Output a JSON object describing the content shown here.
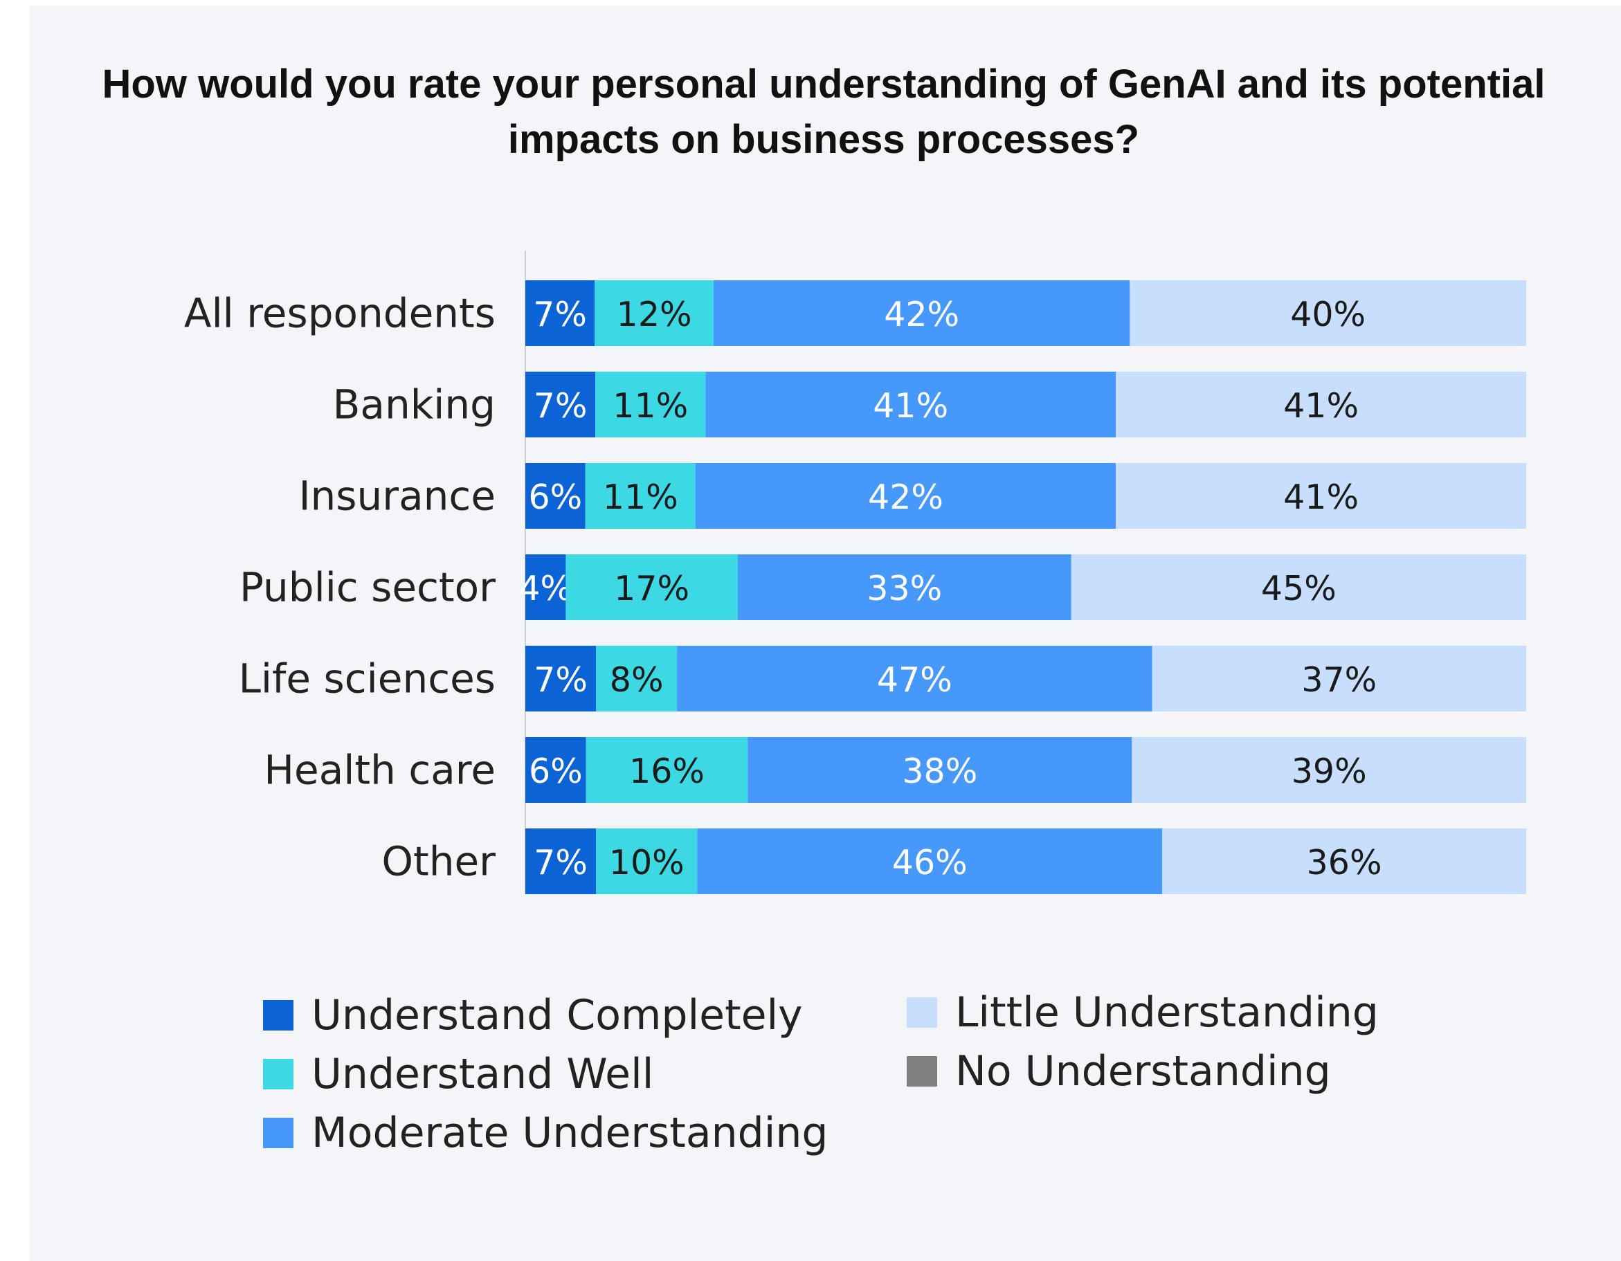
{
  "chart_data": {
    "type": "bar",
    "orientation": "horizontal",
    "stacked": true,
    "title": "How would you rate your personal understanding of GenAI and its potential impacts on business processes?",
    "categories": [
      "All respondents",
      "Banking",
      "Insurance",
      "Public sector",
      "Life sciences",
      "Health care",
      "Other"
    ],
    "series": [
      {
        "name": "Understand Completely",
        "color": "#0b63d6",
        "label_color": "#ffffff",
        "values": [
          7,
          7,
          6,
          4,
          7,
          6,
          7
        ],
        "labels": [
          "7%",
          "7%",
          "6%",
          "4%",
          "7%",
          "6%",
          "7%"
        ]
      },
      {
        "name": "Understand Well",
        "color": "#3cd8e4",
        "label_color": "#1a1a1a",
        "values": [
          12,
          11,
          11,
          17,
          8,
          16,
          10
        ],
        "labels": [
          "12%",
          "11%",
          "11%",
          "17%",
          "8%",
          "16%",
          "10%"
        ]
      },
      {
        "name": "Moderate Understanding",
        "color": "#4698fa",
        "label_color": "#ffffff",
        "values": [
          42,
          41,
          42,
          33,
          47,
          38,
          46
        ],
        "labels": [
          "42%",
          "41%",
          "42%",
          "33%",
          "47%",
          "38%",
          "46%"
        ]
      },
      {
        "name": "Little Understanding",
        "color": "#c7dffc",
        "label_color": "#1a1a1a",
        "values": [
          40,
          41,
          41,
          45,
          37,
          39,
          36
        ],
        "labels": [
          "40%",
          "41%",
          "41%",
          "45%",
          "37%",
          "39%",
          "36%"
        ]
      },
      {
        "name": "No Understanding",
        "color": "#7f7f7f",
        "label_color": "#ffffff",
        "values": [
          0,
          0,
          0,
          0,
          0,
          0,
          0
        ],
        "labels": [
          "",
          "",
          "",
          "",
          "",
          "",
          ""
        ]
      }
    ],
    "xlim": [
      0,
      100
    ],
    "grid": false,
    "legend_position": "bottom"
  },
  "legend": {
    "items": [
      {
        "name": "Understand Completely",
        "color": "#0b63d6"
      },
      {
        "name": "Understand Well",
        "color": "#3cd8e4"
      },
      {
        "name": "Moderate Understanding",
        "color": "#4698fa"
      },
      {
        "name": "Little Understanding",
        "color": "#c7dffc"
      },
      {
        "name": "No Understanding",
        "color": "#7f7f7f"
      }
    ]
  }
}
